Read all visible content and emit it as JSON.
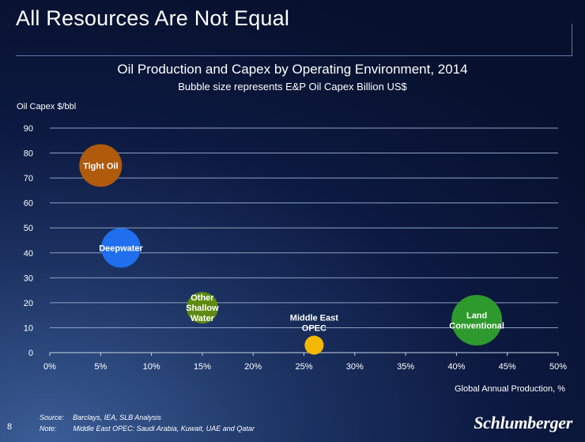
{
  "slide": {
    "title": "All Resources Are Not Equal",
    "page_number": "8"
  },
  "footer": {
    "source_label": "Source:",
    "source_text": "Barclays,  IEA, SLB Analysis",
    "note_label": "Note:",
    "note_text": "Middle East OPEC: Saudi Arabia, Kuwait,  UAE and Qatar"
  },
  "logo_text": "Schlumberger",
  "colors": {
    "gridline": "#8da0c4",
    "axis_text": "#ffffff"
  },
  "chart_data": {
    "type": "bubble",
    "title": "Oil Production and Capex by Operating Environment, 2014",
    "subtitle": "Bubble size represents E&P Oil Capex Billion US$",
    "xlabel": "Global Annual Production, %",
    "ylabel": "Oil Capex $/bbl",
    "xlim": [
      0,
      50
    ],
    "ylim": [
      0,
      90
    ],
    "x_ticks": [
      "0%",
      "5%",
      "10%",
      "15%",
      "20%",
      "25%",
      "30%",
      "35%",
      "40%",
      "45%",
      "50%"
    ],
    "y_ticks": [
      "0",
      "10",
      "20",
      "30",
      "40",
      "50",
      "60",
      "70",
      "80",
      "90"
    ],
    "grid": true,
    "series": [
      {
        "name": "Tight Oil",
        "x": 5,
        "y": 75,
        "relative_size": 0.54,
        "color": "#b05a0c",
        "label_lines": [
          "Tight Oil"
        ],
        "label_position": "inside"
      },
      {
        "name": "Deepwater",
        "x": 7,
        "y": 42,
        "relative_size": 0.5,
        "color": "#1f6fee",
        "label_lines": [
          "Deepwater"
        ],
        "label_position": "inside"
      },
      {
        "name": "Other Shallow Water",
        "x": 15,
        "y": 18,
        "relative_size": 0.4,
        "color": "#5e8a12",
        "label_lines": [
          "Other",
          "Shallow",
          "Water"
        ],
        "label_position": "inside"
      },
      {
        "name": "Middle East OPEC",
        "x": 26,
        "y": 3,
        "relative_size": 0.24,
        "color": "#f5b800",
        "label_lines": [
          "Middle East",
          "OPEC"
        ],
        "label_position": "above"
      },
      {
        "name": "Land Conventional",
        "x": 42,
        "y": 13,
        "relative_size": 0.64,
        "color": "#2e9a2e",
        "label_lines": [
          "Land",
          "Conventional"
        ],
        "label_position": "inside"
      }
    ]
  }
}
